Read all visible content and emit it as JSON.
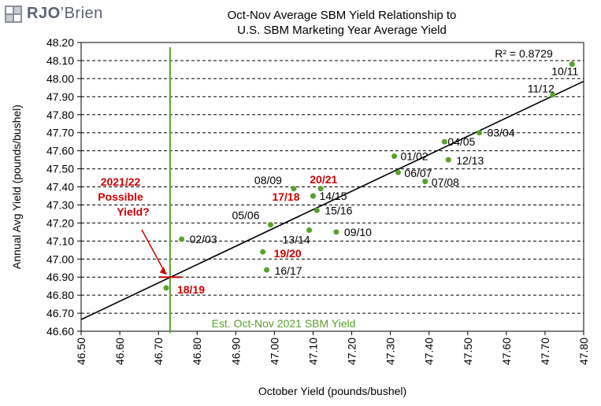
{
  "logo": {
    "brand": "RJO",
    "suffix": "Brien",
    "apostrophe": "’"
  },
  "chart_data": {
    "type": "scatter",
    "title": [
      "Oct-Nov Average SBM Yield Relationship to",
      "U.S. SBM Marketing Year Average Yield"
    ],
    "xlabel": "October Yield  (pounds/bushel)",
    "ylabel": "Annual Avg Yield  (pounds/bushel)",
    "xlim": [
      46.5,
      47.8
    ],
    "ylim": [
      46.6,
      48.2
    ],
    "x_ticks": [
      "46.50",
      "46.60",
      "46.70",
      "46.80",
      "46.90",
      "47.00",
      "47.10",
      "47.20",
      "47.30",
      "47.40",
      "47.50",
      "47.60",
      "47.70",
      "47.80"
    ],
    "y_ticks": [
      "46.60",
      "46.70",
      "46.80",
      "46.90",
      "47.00",
      "47.10",
      "47.20",
      "47.30",
      "47.40",
      "47.50",
      "47.60",
      "47.70",
      "47.80",
      "47.90",
      "48.00",
      "48.10",
      "48.20"
    ],
    "grid": "horizontal dashed",
    "points": [
      {
        "label": "10/11",
        "x": 47.77,
        "y": 48.08,
        "color": "#000000"
      },
      {
        "label": "11/12",
        "x": 47.72,
        "y": 47.91,
        "color": "#000000"
      },
      {
        "label": "03/04",
        "x": 47.53,
        "y": 47.7,
        "color": "#000000"
      },
      {
        "label": "04/05",
        "x": 47.44,
        "y": 47.65,
        "color": "#000000"
      },
      {
        "label": "12/13",
        "x": 47.45,
        "y": 47.55,
        "color": "#000000"
      },
      {
        "label": "01/02",
        "x": 47.31,
        "y": 47.57,
        "color": "#000000"
      },
      {
        "label": "06/07",
        "x": 47.32,
        "y": 47.48,
        "color": "#000000"
      },
      {
        "label": "07/08",
        "x": 47.39,
        "y": 47.43,
        "color": "#000000"
      },
      {
        "label": "08/09",
        "x": 47.05,
        "y": 47.39,
        "color": "#000000"
      },
      {
        "label": "20/21",
        "x": 47.12,
        "y": 47.39,
        "color": "#cc0000"
      },
      {
        "label": "17/18",
        "x": 47.1,
        "y": 47.35,
        "color": "#cc0000"
      },
      {
        "label": "14/15",
        "x": 47.1,
        "y": 47.35,
        "color": "#000000"
      },
      {
        "label": "15/16",
        "x": 47.11,
        "y": 47.27,
        "color": "#000000"
      },
      {
        "label": "05/06",
        "x": 46.99,
        "y": 47.19,
        "color": "#000000"
      },
      {
        "label": "13/14",
        "x": 47.09,
        "y": 47.16,
        "color": "#000000"
      },
      {
        "label": "09/10",
        "x": 47.16,
        "y": 47.15,
        "color": "#000000"
      },
      {
        "label": "02/03",
        "x": 46.76,
        "y": 47.11,
        "color": "#000000"
      },
      {
        "label": "19/20",
        "x": 46.97,
        "y": 47.04,
        "color": "#cc0000"
      },
      {
        "label": "16/17",
        "x": 46.98,
        "y": 46.94,
        "color": "#000000"
      },
      {
        "label": "18/19",
        "x": 46.72,
        "y": 46.84,
        "color": "#cc0000"
      }
    ],
    "trendline": {
      "x": [
        46.5,
        47.8
      ],
      "y": [
        46.665,
        47.985
      ],
      "label": "R² = 0.8729"
    },
    "vertical_line": {
      "x": 46.73,
      "label": "Est. Oct-Nov 2021 SBM Yield"
    },
    "estimate": {
      "x": 46.73,
      "y": 46.9,
      "label": [
        "2021/22",
        "Possible",
        "Yield?"
      ]
    },
    "colors": {
      "point": "#5aa02c",
      "vline": "#5aa02c",
      "highlight": "#cc0000",
      "trend": "#000000",
      "vlabel": "#5aa02c"
    }
  }
}
